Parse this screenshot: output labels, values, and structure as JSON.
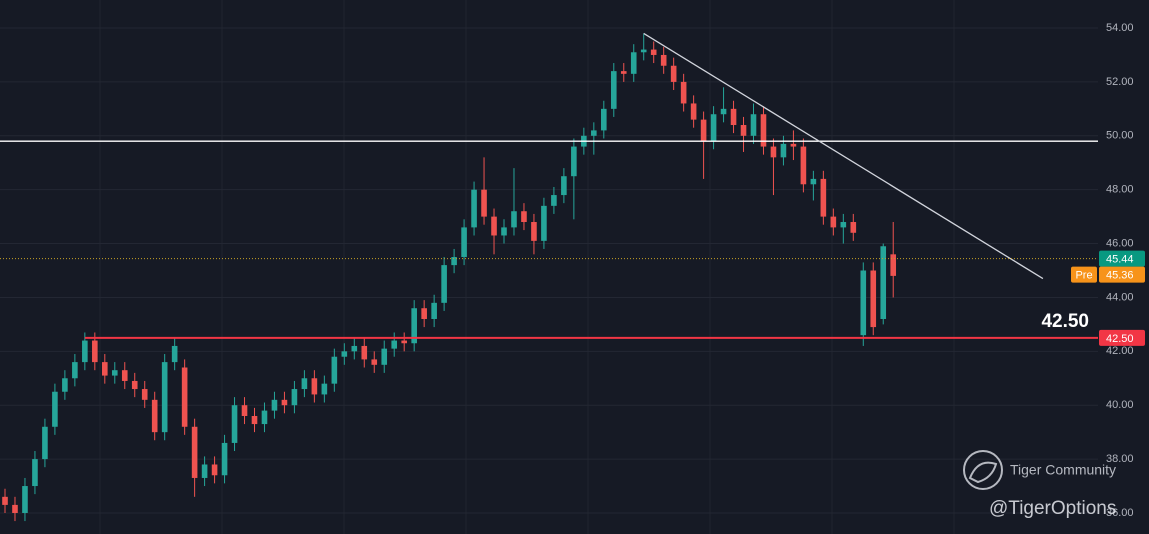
{
  "chart_data": {
    "type": "candlestick",
    "up_color": "#26a69a",
    "down_color": "#ef5350",
    "ylim": [
      35.22,
      55.04
    ],
    "yticks": [
      {
        "value": 36,
        "label": "36.00"
      },
      {
        "value": 38,
        "label": "38.00"
      },
      {
        "value": 40,
        "label": "40.00"
      },
      {
        "value": 42,
        "label": "42.00"
      },
      {
        "value": 44,
        "label": "44.00"
      },
      {
        "value": 46,
        "label": "46.00"
      },
      {
        "value": 48,
        "label": "48.00"
      },
      {
        "value": 50,
        "label": "50.00"
      },
      {
        "value": 52,
        "label": "52.00"
      },
      {
        "value": 54,
        "label": "54.00"
      }
    ],
    "grid": true,
    "open": [
      36.6,
      36.3,
      36.0,
      37.0,
      38.0,
      39.2,
      40.5,
      41.0,
      41.6,
      42.4,
      41.6,
      41.1,
      41.3,
      40.9,
      40.6,
      40.2,
      39.0,
      41.6,
      41.4,
      39.2,
      37.3,
      37.8,
      37.4,
      38.6,
      40.0,
      39.6,
      39.3,
      39.8,
      40.2,
      40.0,
      40.6,
      41.0,
      40.4,
      40.8,
      41.8,
      42.0,
      42.2,
      41.7,
      41.5,
      42.1,
      42.4,
      42.3,
      43.6,
      43.2,
      43.8,
      45.2,
      45.5,
      46.6,
      48.0,
      47.0,
      46.3,
      46.6,
      47.2,
      46.8,
      46.1,
      47.4,
      47.8,
      48.5,
      49.6,
      50.0,
      50.2,
      51.0,
      52.4,
      52.3,
      53.1,
      53.2,
      53.0,
      52.6,
      52.0,
      51.2,
      50.6,
      49.8,
      50.8,
      51.0,
      50.4,
      50.0,
      50.8,
      49.6,
      49.2,
      49.7,
      49.6,
      48.2,
      48.4,
      47.0,
      46.6,
      46.8,
      42.6,
      45.0,
      43.2,
      45.6
    ],
    "high": [
      36.9,
      36.6,
      37.3,
      38.3,
      39.5,
      40.8,
      41.3,
      41.9,
      42.7,
      42.7,
      41.9,
      41.6,
      41.6,
      41.2,
      40.9,
      40.5,
      41.9,
      42.5,
      41.7,
      39.5,
      38.1,
      38.1,
      38.9,
      40.3,
      40.3,
      39.9,
      40.1,
      40.5,
      40.5,
      40.9,
      41.3,
      41.3,
      41.1,
      42.1,
      42.3,
      42.5,
      42.5,
      42.0,
      42.4,
      42.7,
      42.7,
      43.9,
      43.9,
      44.1,
      45.5,
      45.8,
      46.9,
      48.3,
      49.2,
      47.3,
      46.9,
      48.8,
      47.5,
      47.1,
      47.7,
      48.1,
      48.8,
      49.9,
      50.3,
      50.5,
      51.3,
      52.7,
      52.7,
      53.4,
      53.8,
      53.5,
      53.3,
      52.9,
      52.3,
      51.5,
      50.9,
      51.1,
      51.8,
      51.3,
      50.7,
      51.2,
      51.1,
      49.9,
      50.0,
      50.2,
      49.9,
      48.7,
      48.7,
      47.3,
      47.1,
      47.1,
      45.3,
      45.3,
      46.0,
      46.8
    ],
    "low": [
      36.0,
      35.7,
      35.7,
      36.7,
      37.7,
      38.9,
      40.2,
      40.7,
      41.3,
      41.3,
      40.8,
      40.8,
      40.6,
      40.3,
      39.9,
      38.7,
      38.7,
      41.3,
      38.9,
      36.6,
      37.0,
      37.1,
      37.1,
      38.3,
      39.3,
      39.0,
      39.0,
      39.5,
      39.7,
      39.7,
      40.3,
      40.1,
      40.1,
      40.5,
      41.5,
      41.7,
      41.4,
      41.2,
      41.2,
      41.8,
      42.0,
      42.0,
      42.9,
      42.9,
      43.5,
      44.9,
      45.2,
      46.3,
      46.7,
      45.6,
      46.0,
      46.3,
      46.5,
      45.6,
      45.8,
      47.1,
      47.5,
      46.9,
      49.3,
      49.3,
      49.9,
      50.7,
      52.0,
      52.0,
      52.8,
      52.7,
      52.3,
      51.7,
      50.9,
      50.3,
      48.4,
      49.5,
      50.5,
      50.1,
      49.4,
      49.7,
      49.3,
      47.8,
      48.9,
      49.1,
      47.9,
      47.6,
      46.7,
      46.3,
      46.0,
      46.1,
      42.2,
      42.6,
      43.0,
      44.0
    ],
    "close": [
      36.3,
      36.0,
      37.0,
      38.0,
      39.2,
      40.5,
      41.0,
      41.6,
      42.4,
      41.6,
      41.1,
      41.3,
      40.9,
      40.6,
      40.2,
      39.0,
      41.6,
      42.2,
      39.2,
      37.3,
      37.8,
      37.4,
      38.6,
      40.0,
      39.6,
      39.3,
      39.8,
      40.2,
      40.0,
      40.6,
      41.0,
      40.4,
      40.8,
      41.8,
      42.0,
      42.2,
      41.7,
      41.5,
      42.1,
      42.4,
      42.3,
      43.6,
      43.2,
      43.8,
      45.2,
      45.5,
      46.6,
      48.0,
      47.0,
      46.3,
      46.6,
      47.2,
      46.8,
      46.1,
      47.4,
      47.8,
      48.5,
      49.6,
      50.0,
      50.2,
      51.0,
      52.4,
      52.3,
      53.1,
      53.2,
      53.0,
      52.6,
      52.0,
      51.2,
      50.6,
      49.8,
      50.8,
      51.0,
      50.4,
      50.0,
      50.8,
      49.6,
      49.2,
      49.7,
      49.6,
      48.2,
      48.4,
      47.0,
      46.6,
      46.8,
      46.4,
      45.0,
      42.9,
      45.9,
      44.8
    ],
    "resistance": {
      "value": 49.8,
      "color": "#ffffff"
    },
    "support": {
      "value": 42.5,
      "color": "#f23645",
      "start": 8,
      "label": "42.50",
      "annotation": "42.50"
    },
    "trend_line": {
      "x": [
        64,
        104
      ],
      "y": [
        53.8,
        44.7
      ],
      "color": "#d1d4dc"
    },
    "last_price": {
      "value": 45.44,
      "label": "45.44",
      "color": "#089981"
    },
    "premarket": {
      "tag": "Pre",
      "value": 45.36,
      "label": "45.36",
      "color": "#f7931a"
    },
    "watermark": {
      "brand": "Tiger Community",
      "handle": "@TigerOptions"
    }
  }
}
